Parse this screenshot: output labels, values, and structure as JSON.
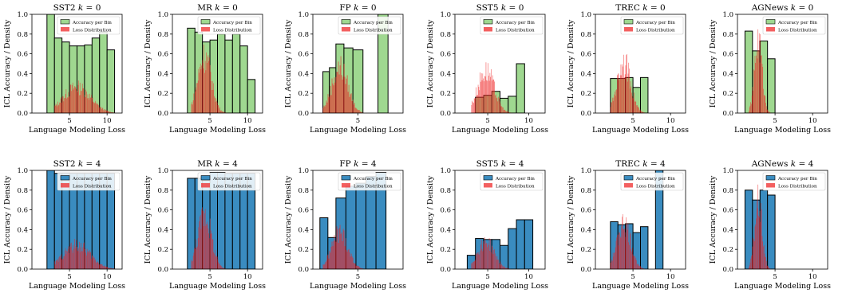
{
  "figure": {
    "xlabel": "Language Modeling Loss",
    "ylabel": "ICL Accuracy / Density",
    "legend": [
      "Accuracy per Bin",
      "Loss Distribution"
    ],
    "legend_placement": "top-right",
    "y_ticks": [
      "0.0",
      "0.2",
      "0.4",
      "0.6",
      "0.8",
      "1.0"
    ],
    "x_ticks": [
      "5",
      "10"
    ]
  },
  "colors": {
    "k0_accuracy": "#9fd890",
    "k4_accuracy": "#3a8cc0",
    "loss": "#ee2222",
    "edge": "#000000"
  },
  "chart_data": [
    {
      "type": "bar",
      "title": "SST2 k = 0",
      "dataset": "SST2",
      "k": "0",
      "xlim": [
        0,
        12
      ],
      "ylim": [
        0,
        1
      ],
      "accuracy_bins": [
        [
          2,
          3,
          1.0
        ],
        [
          3,
          4,
          0.76
        ],
        [
          4,
          5,
          0.72
        ],
        [
          5,
          6,
          0.68
        ],
        [
          6,
          7,
          0.68
        ],
        [
          7,
          8,
          0.69
        ],
        [
          8,
          9,
          0.76
        ],
        [
          9,
          10,
          0.82
        ],
        [
          10,
          11,
          0.64
        ]
      ],
      "loss_distribution": {
        "center": 6,
        "spread": 1.8,
        "peak": 0.28,
        "range": [
          3,
          11
        ]
      }
    },
    {
      "type": "bar",
      "title": "MR k = 0",
      "dataset": "MR",
      "k": "0",
      "xlim": [
        0,
        12
      ],
      "ylim": [
        0,
        1
      ],
      "accuracy_bins": [
        [
          2,
          3,
          0.86
        ],
        [
          3,
          4,
          0.82
        ],
        [
          4,
          5,
          0.72
        ],
        [
          5,
          6,
          0.74
        ],
        [
          6,
          7,
          0.8
        ],
        [
          7,
          8,
          0.74
        ],
        [
          8,
          9,
          0.8
        ],
        [
          9,
          10,
          0.68
        ],
        [
          10,
          11,
          0.34
        ]
      ],
      "loss_distribution": {
        "center": 4.3,
        "spread": 0.9,
        "peak": 0.62,
        "range": [
          2.5,
          11
        ]
      }
    },
    {
      "type": "bar",
      "title": "FP k = 0",
      "dataset": "FP",
      "k": "0",
      "xlim": [
        0.5,
        9.5
      ],
      "ylim": [
        0,
        1
      ],
      "accuracy_bins": [
        [
          1.5,
          2.15,
          0.42
        ],
        [
          2.15,
          2.8,
          0.46
        ],
        [
          2.8,
          3.6,
          0.7
        ],
        [
          3.6,
          4.5,
          0.66
        ],
        [
          4.5,
          5.5,
          0.64
        ],
        [
          7,
          8,
          1.0
        ]
      ],
      "loss_distribution": {
        "center": 3.2,
        "spread": 0.8,
        "peak": 0.5,
        "range": [
          1.5,
          5.5
        ]
      }
    },
    {
      "type": "bar",
      "title": "SST5 k = 0",
      "dataset": "SST5",
      "k": "0",
      "xlim": [
        1,
        12
      ],
      "ylim": [
        0,
        1
      ],
      "accuracy_bins": [
        [
          3.5,
          4.5,
          0.16
        ],
        [
          4.5,
          5.5,
          0.18
        ],
        [
          5.5,
          6.5,
          0.22
        ],
        [
          6.5,
          7.5,
          0.15
        ],
        [
          7.5,
          8.5,
          0.17
        ],
        [
          8.5,
          9.5,
          0.5
        ]
      ],
      "loss_distribution": {
        "center": 4.8,
        "spread": 1.0,
        "peak": 0.46,
        "range": [
          3,
          8
        ]
      }
    },
    {
      "type": "bar",
      "title": "TREC k = 0",
      "dataset": "TREC",
      "k": "0",
      "xlim": [
        0,
        12
      ],
      "ylim": [
        0,
        1
      ],
      "accuracy_bins": [
        [
          2,
          3,
          0.35
        ],
        [
          3,
          4,
          0.35
        ],
        [
          4,
          5,
          0.36
        ],
        [
          5,
          6,
          0.26
        ],
        [
          6,
          7,
          0.36
        ]
      ],
      "loss_distribution": {
        "center": 3.8,
        "spread": 0.9,
        "peak": 0.55,
        "range": [
          2,
          6.5
        ]
      }
    },
    {
      "type": "bar",
      "title": "AGNews k = 0",
      "dataset": "AGNews",
      "k": "0",
      "xlim": [
        0,
        12
      ],
      "ylim": [
        0,
        1
      ],
      "accuracy_bins": [
        [
          1,
          2,
          0.83
        ],
        [
          2,
          3,
          0.63
        ],
        [
          3,
          4,
          0.73
        ],
        [
          4,
          5,
          0.55
        ]
      ],
      "loss_distribution": {
        "center": 2.8,
        "spread": 0.5,
        "peak": 0.8,
        "range": [
          1.5,
          4.5
        ]
      }
    },
    {
      "type": "bar",
      "title": "SST2 k = 4",
      "dataset": "SST2",
      "k": "4",
      "xlim": [
        0,
        12
      ],
      "ylim": [
        0,
        1
      ],
      "accuracy_bins": [
        [
          2,
          3,
          1.0
        ],
        [
          3,
          4,
          0.97
        ],
        [
          4,
          5,
          0.97
        ],
        [
          5,
          6,
          0.97
        ],
        [
          6,
          7,
          0.97
        ],
        [
          7,
          8,
          0.97
        ],
        [
          8,
          9,
          0.97
        ],
        [
          9,
          10,
          0.97
        ],
        [
          10,
          11,
          0.97
        ]
      ],
      "loss_distribution": {
        "center": 6,
        "spread": 1.8,
        "peak": 0.26,
        "range": [
          3,
          11
        ]
      }
    },
    {
      "type": "bar",
      "title": "MR k = 4",
      "dataset": "MR",
      "k": "4",
      "xlim": [
        0,
        12
      ],
      "ylim": [
        0,
        1
      ],
      "accuracy_bins": [
        [
          2,
          3,
          0.92
        ],
        [
          3,
          4,
          0.92
        ],
        [
          4,
          5,
          0.9
        ],
        [
          5,
          6,
          0.98
        ],
        [
          6,
          7,
          0.98
        ],
        [
          7,
          8,
          0.97
        ],
        [
          8,
          9,
          0.97
        ],
        [
          9,
          10,
          0.97
        ],
        [
          10,
          11,
          0.97
        ]
      ],
      "loss_distribution": {
        "center": 4.3,
        "spread": 0.9,
        "peak": 0.6,
        "range": [
          2.5,
          11
        ]
      }
    },
    {
      "type": "bar",
      "title": "FP k = 4",
      "dataset": "FP",
      "k": "4",
      "xlim": [
        0.5,
        9.5
      ],
      "ylim": [
        0,
        1
      ],
      "accuracy_bins": [
        [
          1.2,
          2,
          0.52
        ],
        [
          2,
          2.8,
          0.32
        ],
        [
          2.8,
          3.8,
          0.72
        ],
        [
          3.8,
          4.8,
          0.84
        ],
        [
          4.8,
          5.8,
          0.87
        ],
        [
          5.8,
          6.8,
          0.94
        ],
        [
          6.8,
          7.8,
          0.98
        ]
      ],
      "loss_distribution": {
        "center": 3.2,
        "spread": 0.8,
        "peak": 0.4,
        "range": [
          1.5,
          5.5
        ]
      }
    },
    {
      "type": "bar",
      "title": "SST5 k = 4",
      "dataset": "SST5",
      "k": "4",
      "xlim": [
        1,
        12
      ],
      "ylim": [
        0,
        1
      ],
      "accuracy_bins": [
        [
          2.5,
          3.5,
          0.14
        ],
        [
          3.5,
          4.5,
          0.31
        ],
        [
          4.5,
          5.5,
          0.3
        ],
        [
          5.5,
          6.5,
          0.3
        ],
        [
          6.5,
          7.5,
          0.24
        ],
        [
          7.5,
          8.5,
          0.41
        ],
        [
          8.5,
          9.5,
          0.5
        ],
        [
          9.5,
          10.5,
          0.5
        ]
      ],
      "loss_distribution": {
        "center": 4.8,
        "spread": 1.0,
        "peak": 0.3,
        "range": [
          3,
          8
        ]
      }
    },
    {
      "type": "bar",
      "title": "TREC k = 4",
      "dataset": "TREC",
      "k": "4",
      "xlim": [
        0,
        12
      ],
      "ylim": [
        0,
        1
      ],
      "accuracy_bins": [
        [
          2,
          3,
          0.48
        ],
        [
          3,
          4,
          0.45
        ],
        [
          4,
          5,
          0.46
        ],
        [
          5,
          6,
          0.37
        ],
        [
          6,
          7,
          0.43
        ],
        [
          8,
          9,
          1.0
        ]
      ],
      "loss_distribution": {
        "center": 3.8,
        "spread": 0.9,
        "peak": 0.5,
        "range": [
          2,
          6.5
        ]
      }
    },
    {
      "type": "bar",
      "title": "AGNews k = 4",
      "dataset": "AGNews",
      "k": "4",
      "xlim": [
        0,
        12
      ],
      "ylim": [
        0,
        1
      ],
      "accuracy_bins": [
        [
          1,
          2,
          0.8
        ],
        [
          2,
          3,
          0.7
        ],
        [
          3,
          4,
          0.8
        ],
        [
          4,
          5,
          0.75
        ]
      ],
      "loss_distribution": {
        "center": 2.8,
        "spread": 0.5,
        "peak": 0.72,
        "range": [
          1.5,
          4.5
        ]
      }
    }
  ]
}
